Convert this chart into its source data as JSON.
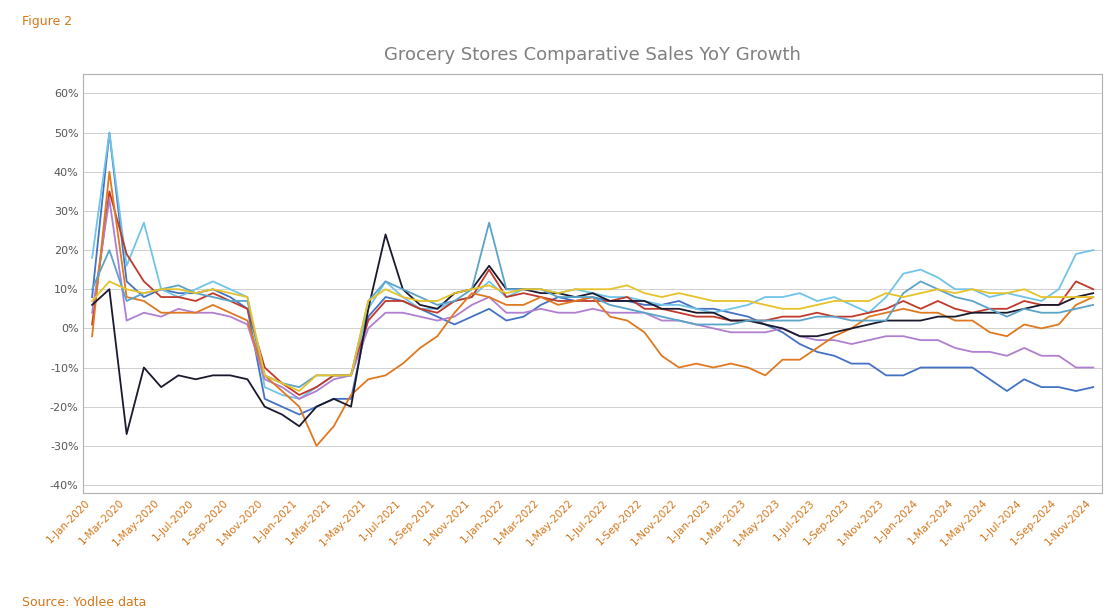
{
  "title": "Grocery Stores Comparative Sales YoY Growth",
  "figure_label": "Figure 2",
  "source_text": "Source: Yodlee data",
  "background_color": "#ffffff",
  "plot_background": "#ffffff",
  "label_color": "#d4761a",
  "title_color": "#7f7f7f",
  "tick_color": "#d4761a",
  "grid_color": "#d0d0d0",
  "spine_color": "#b0b0b0",
  "ylim": [
    -0.42,
    0.65
  ],
  "yticks": [
    -0.4,
    -0.3,
    -0.2,
    -0.1,
    0.0,
    0.1,
    0.2,
    0.3,
    0.4,
    0.5,
    0.6
  ],
  "series": {
    "Albertsons": {
      "color": "#4472c4",
      "linewidth": 1.3,
      "data": [
        0.08,
        0.5,
        0.12,
        0.08,
        0.1,
        0.09,
        0.09,
        0.1,
        0.08,
        0.05,
        -0.18,
        -0.2,
        -0.22,
        -0.2,
        -0.18,
        -0.18,
        0.03,
        0.08,
        0.07,
        0.05,
        0.03,
        0.01,
        0.03,
        0.05,
        0.02,
        0.03,
        0.06,
        0.08,
        0.07,
        0.08,
        0.07,
        0.07,
        0.06,
        0.06,
        0.07,
        0.05,
        0.05,
        0.04,
        0.03,
        0.01,
        -0.01,
        -0.04,
        -0.06,
        -0.07,
        -0.09,
        -0.09,
        -0.12,
        -0.12,
        -0.1,
        -0.1,
        -0.1,
        -0.1,
        -0.13,
        -0.16,
        -0.13,
        -0.15,
        -0.15,
        -0.16,
        -0.15
      ]
    },
    "ALDI": {
      "color": "#70c4e8",
      "linewidth": 1.3,
      "data": [
        0.18,
        0.5,
        0.16,
        0.27,
        0.1,
        0.08,
        0.1,
        0.12,
        0.1,
        0.08,
        -0.15,
        -0.17,
        -0.18,
        -0.15,
        -0.12,
        -0.12,
        0.05,
        0.12,
        0.08,
        0.05,
        0.05,
        0.07,
        0.08,
        0.12,
        0.08,
        0.1,
        0.1,
        0.09,
        0.1,
        0.09,
        0.08,
        0.08,
        0.07,
        0.06,
        0.06,
        0.05,
        0.04,
        0.05,
        0.06,
        0.08,
        0.08,
        0.09,
        0.07,
        0.08,
        0.06,
        0.04,
        0.08,
        0.14,
        0.15,
        0.13,
        0.1,
        0.1,
        0.08,
        0.09,
        0.08,
        0.07,
        0.1,
        0.19,
        0.2
      ]
    },
    "Kroger": {
      "color": "#c0392b",
      "linewidth": 1.3,
      "data": [
        0.01,
        0.35,
        0.19,
        0.12,
        0.08,
        0.08,
        0.07,
        0.09,
        0.07,
        0.05,
        -0.1,
        -0.14,
        -0.17,
        -0.15,
        -0.12,
        -0.12,
        0.02,
        0.07,
        0.07,
        0.05,
        0.04,
        0.07,
        0.08,
        0.15,
        0.08,
        0.09,
        0.08,
        0.07,
        0.07,
        0.07,
        0.07,
        0.08,
        0.05,
        0.05,
        0.04,
        0.03,
        0.03,
        0.02,
        0.02,
        0.02,
        0.03,
        0.03,
        0.04,
        0.03,
        0.03,
        0.04,
        0.05,
        0.07,
        0.05,
        0.07,
        0.05,
        0.04,
        0.05,
        0.05,
        0.07,
        0.06,
        0.06,
        0.12,
        0.1
      ]
    },
    "Safeway": {
      "color": "#b07fcf",
      "linewidth": 1.3,
      "data": [
        0.04,
        0.33,
        0.02,
        0.04,
        0.03,
        0.05,
        0.04,
        0.04,
        0.03,
        0.01,
        -0.13,
        -0.15,
        -0.18,
        -0.16,
        -0.13,
        -0.12,
        0.0,
        0.04,
        0.04,
        0.03,
        0.02,
        0.03,
        0.06,
        0.08,
        0.04,
        0.04,
        0.05,
        0.04,
        0.04,
        0.05,
        0.04,
        0.04,
        0.04,
        0.02,
        0.02,
        0.01,
        0.0,
        -0.01,
        -0.01,
        -0.01,
        0.0,
        -0.02,
        -0.03,
        -0.03,
        -0.04,
        -0.03,
        -0.02,
        -0.02,
        -0.03,
        -0.03,
        -0.05,
        -0.06,
        -0.06,
        -0.07,
        -0.05,
        -0.07,
        -0.07,
        -0.1,
        -0.1
      ]
    },
    "Sprouts Farmers Market": {
      "color": "#e07820",
      "linewidth": 1.3,
      "data": [
        -0.02,
        0.4,
        0.08,
        0.07,
        0.04,
        0.04,
        0.04,
        0.06,
        0.04,
        0.02,
        -0.12,
        -0.16,
        -0.2,
        -0.3,
        -0.25,
        -0.17,
        -0.13,
        -0.12,
        -0.09,
        -0.05,
        -0.02,
        0.04,
        0.09,
        0.08,
        0.06,
        0.06,
        0.08,
        0.06,
        0.07,
        0.08,
        0.03,
        0.02,
        -0.01,
        -0.07,
        -0.1,
        -0.09,
        -0.1,
        -0.09,
        -0.1,
        -0.12,
        -0.08,
        -0.08,
        -0.05,
        -0.02,
        0.0,
        0.03,
        0.04,
        0.05,
        0.04,
        0.04,
        0.02,
        0.02,
        -0.01,
        -0.02,
        0.01,
        0.0,
        0.01,
        0.06,
        0.08
      ]
    },
    "Trader Joe's": {
      "color": "#1a1a2e",
      "linewidth": 1.3,
      "data": [
        0.06,
        0.1,
        -0.27,
        -0.1,
        -0.15,
        -0.12,
        -0.13,
        -0.12,
        -0.12,
        -0.13,
        -0.2,
        -0.22,
        -0.25,
        -0.2,
        -0.18,
        -0.2,
        0.05,
        0.24,
        0.1,
        0.06,
        0.05,
        0.09,
        0.1,
        0.16,
        0.1,
        0.1,
        0.09,
        0.09,
        0.08,
        0.09,
        0.07,
        0.07,
        0.07,
        0.05,
        0.05,
        0.04,
        0.04,
        0.02,
        0.02,
        0.01,
        0.0,
        -0.02,
        -0.02,
        -0.01,
        0.0,
        0.01,
        0.02,
        0.02,
        0.02,
        0.03,
        0.03,
        0.04,
        0.04,
        0.04,
        0.05,
        0.06,
        0.06,
        0.08,
        0.09
      ]
    },
    "Whole Foods Market": {
      "color": "#5ba3c9",
      "linewidth": 1.3,
      "data": [
        0.1,
        0.2,
        0.07,
        0.09,
        0.1,
        0.11,
        0.09,
        0.08,
        0.07,
        0.07,
        -0.12,
        -0.14,
        -0.15,
        -0.12,
        -0.12,
        -0.12,
        0.07,
        0.12,
        0.1,
        0.08,
        0.06,
        0.07,
        0.1,
        0.27,
        0.1,
        0.1,
        0.1,
        0.08,
        0.08,
        0.08,
        0.06,
        0.05,
        0.04,
        0.03,
        0.02,
        0.01,
        0.01,
        0.01,
        0.02,
        0.02,
        0.02,
        0.02,
        0.03,
        0.03,
        0.02,
        0.02,
        0.02,
        0.09,
        0.12,
        0.1,
        0.08,
        0.07,
        0.05,
        0.03,
        0.05,
        0.04,
        0.04,
        0.05,
        0.06
      ]
    },
    "Aggregated Sales": {
      "color": "#e6c229",
      "linewidth": 1.3,
      "data": [
        0.07,
        0.12,
        0.1,
        0.09,
        0.1,
        0.1,
        0.09,
        0.1,
        0.09,
        0.08,
        -0.12,
        -0.14,
        -0.16,
        -0.12,
        -0.12,
        -0.12,
        0.07,
        0.1,
        0.08,
        0.07,
        0.07,
        0.09,
        0.1,
        0.11,
        0.09,
        0.1,
        0.1,
        0.09,
        0.1,
        0.1,
        0.1,
        0.11,
        0.09,
        0.08,
        0.09,
        0.08,
        0.07,
        0.07,
        0.07,
        0.06,
        0.05,
        0.05,
        0.06,
        0.07,
        0.07,
        0.07,
        0.09,
        0.08,
        0.09,
        0.1,
        0.09,
        0.1,
        0.09,
        0.09,
        0.1,
        0.08,
        0.08,
        0.08,
        0.08
      ]
    }
  },
  "xtick_labels": [
    "1-Jan-2020",
    "1-Mar-2020",
    "1-May-2020",
    "1-Jul-2020",
    "1-Sep-2020",
    "1-Nov-2020",
    "1-Jan-2021",
    "1-Mar-2021",
    "1-May-2021",
    "1-Jul-2021",
    "1-Sep-2021",
    "1-Nov-2021",
    "1-Jan-2022",
    "1-Mar-2022",
    "1-May-2022",
    "1-Jul-2022",
    "1-Sep-2022",
    "1-Nov-2022",
    "1-Jan-2023",
    "1-Mar-2023",
    "1-May-2023",
    "1-Jul-2023",
    "1-Sep-2023",
    "1-Nov-2023",
    "1-Jan-2024",
    "1-Mar-2024",
    "1-May-2024",
    "1-Jul-2024",
    "1-Sep-2024",
    "1-Nov-2024"
  ]
}
